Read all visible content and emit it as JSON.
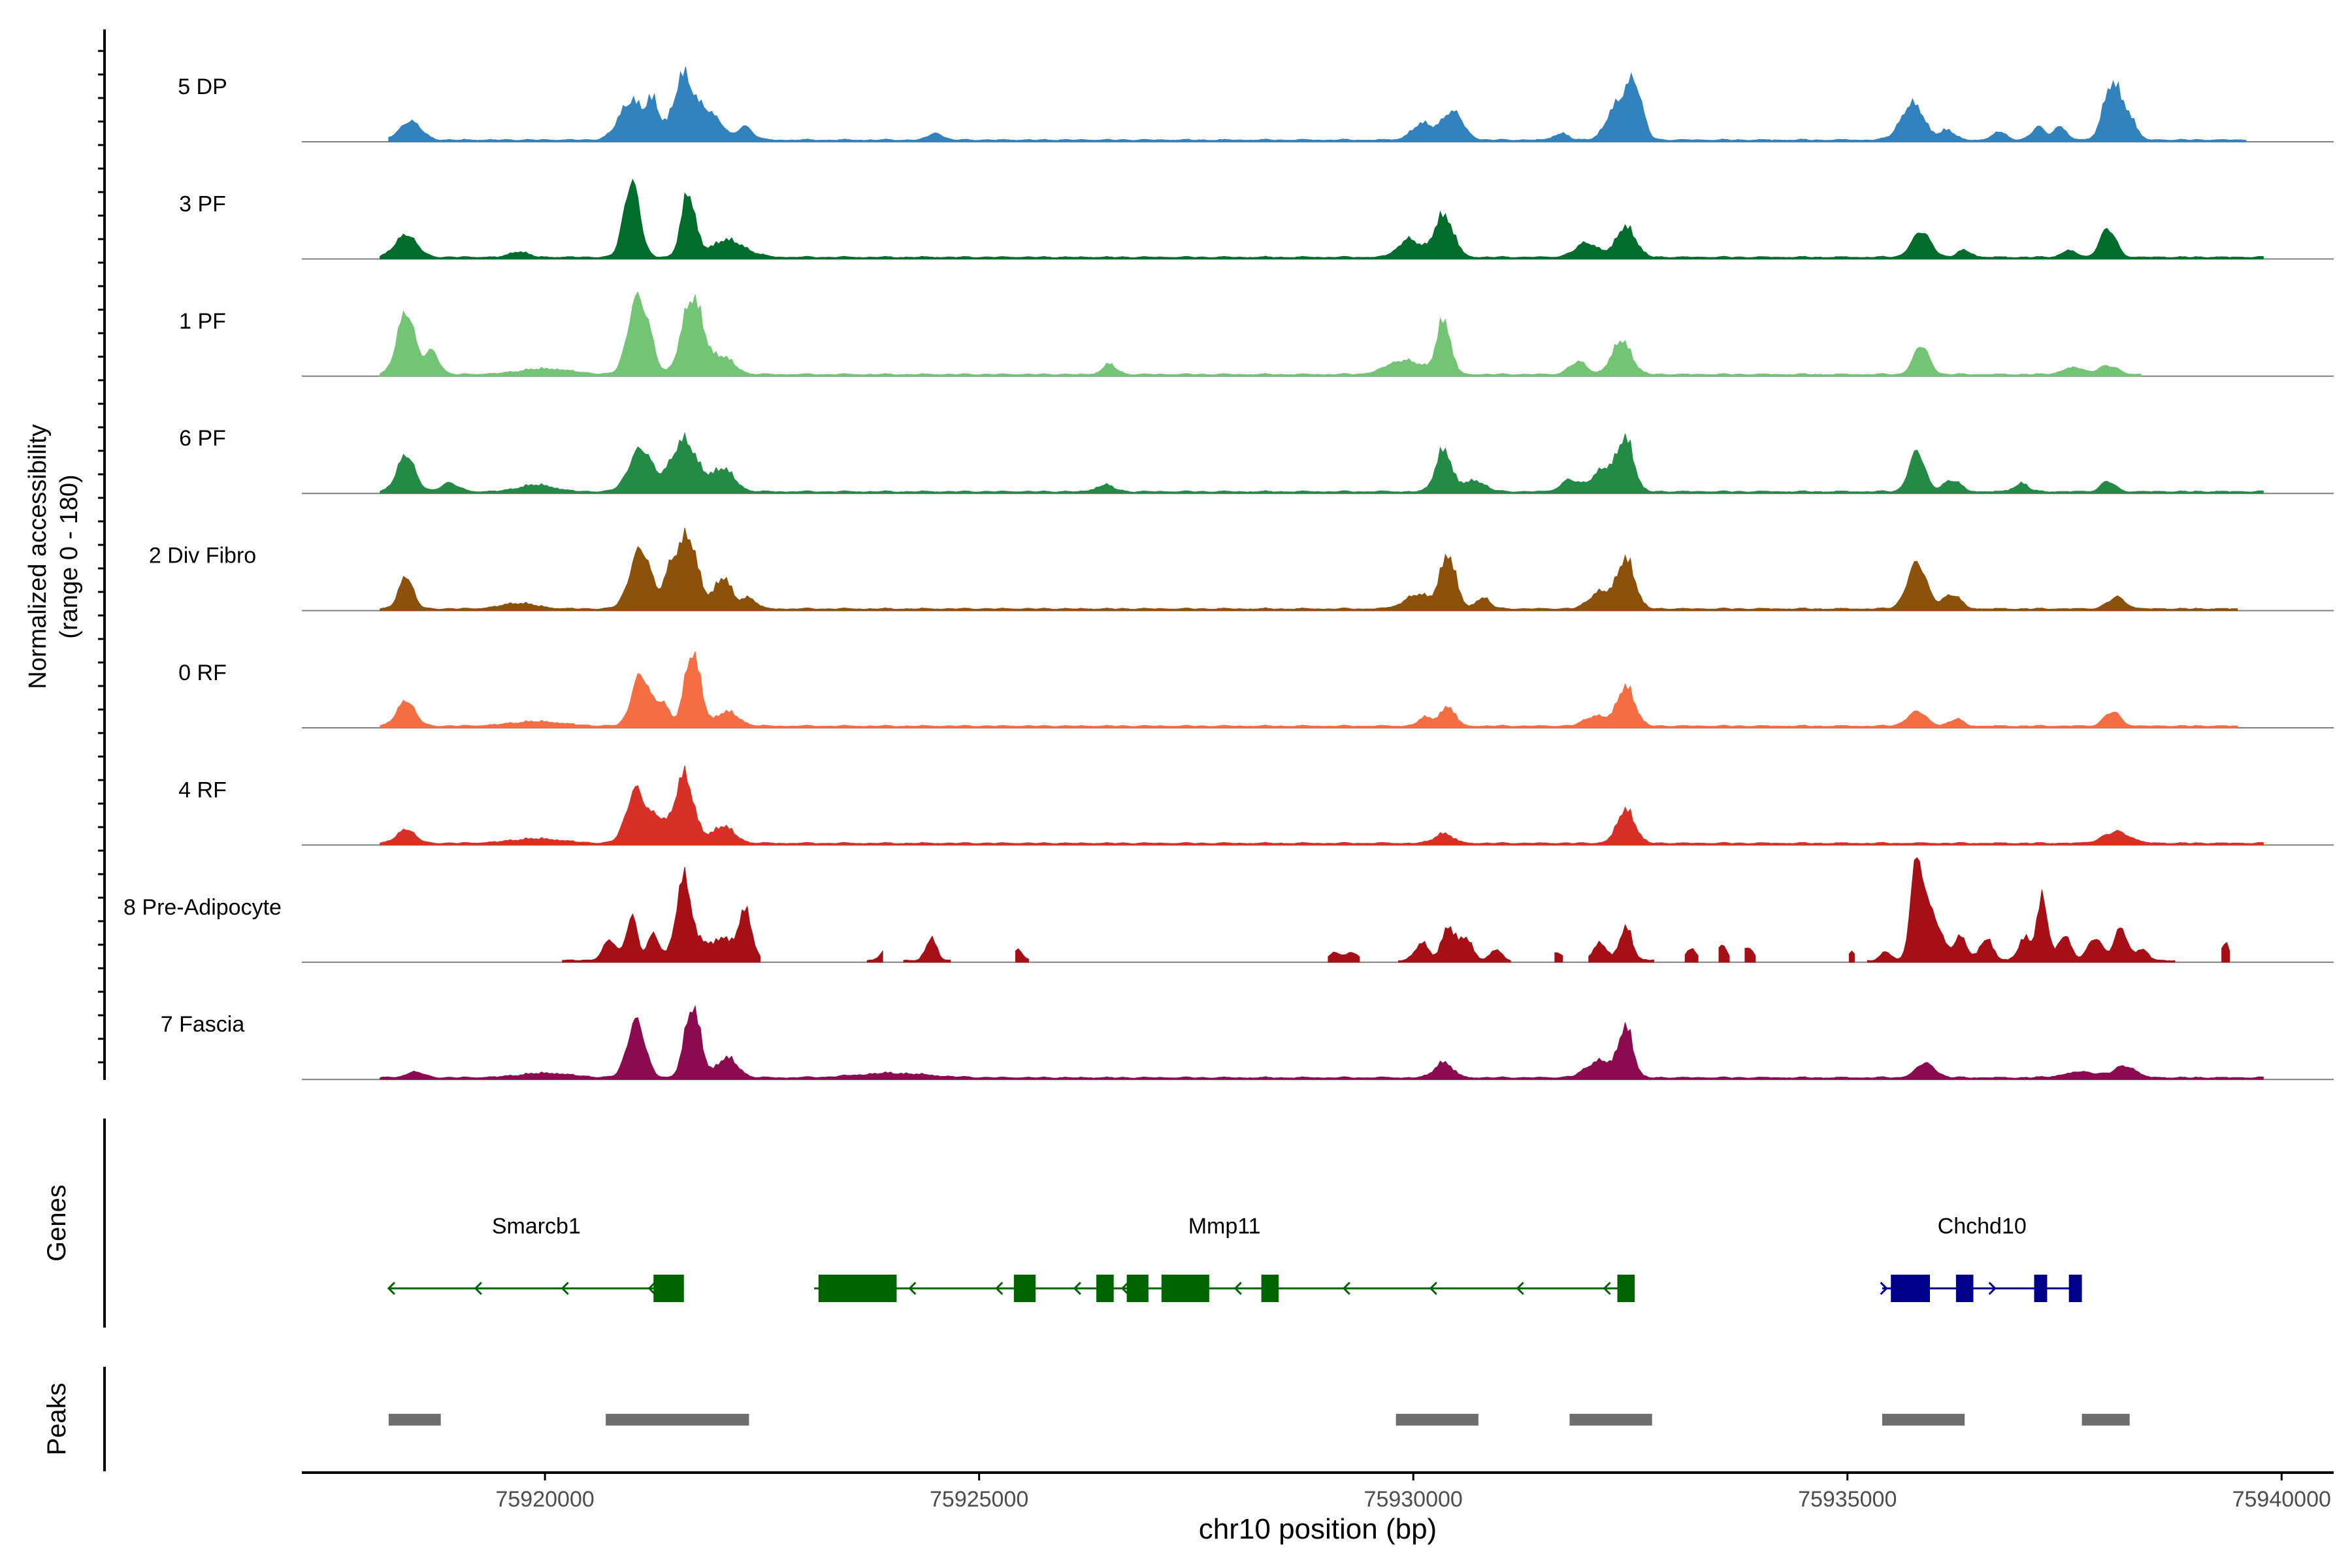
{
  "chart_data": {
    "type": "area",
    "title": "",
    "ylabel_line1": "Normalized accessibility",
    "ylabel_line2": "(range 0 - 180)",
    "xlabel": "chr10 position (bp)",
    "xlim": [
      75917200,
      75940600
    ],
    "ylim": [
      0,
      180
    ],
    "x_ticks": [
      75920000,
      75925000,
      75930000,
      75935000,
      75940000
    ],
    "x_tick_labels": [
      "75920000",
      "75925000",
      "75930000",
      "75935000",
      "75940000"
    ],
    "series": [
      {
        "name": "5 DP",
        "color": "#3182BD",
        "extent": [
          75918200,
          75939600
        ],
        "peaks": [
          [
            75918450,
            33,
            120
          ],
          [
            75921000,
            70,
            140
          ],
          [
            75921250,
            58,
            70
          ],
          [
            75921600,
            115,
            120
          ],
          [
            75921850,
            40,
            80
          ],
          [
            75922000,
            28,
            80
          ],
          [
            75922300,
            24,
            90
          ],
          [
            75924500,
            12,
            80
          ],
          [
            75930100,
            28,
            120
          ],
          [
            75930450,
            50,
            120
          ],
          [
            75931700,
            12,
            80
          ],
          [
            75932350,
            60,
            120
          ],
          [
            75932550,
            90,
            90
          ],
          [
            75935750,
            64,
            130
          ],
          [
            75936150,
            18,
            80
          ],
          [
            75936750,
            14,
            80
          ],
          [
            75937200,
            22,
            80
          ],
          [
            75937450,
            24,
            70
          ],
          [
            75938050,
            100,
            100
          ],
          [
            75938250,
            35,
            80
          ]
        ]
      },
      {
        "name": "3 PF",
        "color": "#006D2C",
        "extent": [
          75918100,
          75939800
        ],
        "peaks": [
          [
            75918400,
            40,
            120
          ],
          [
            75919700,
            10,
            100
          ],
          [
            75921000,
            133,
            90
          ],
          [
            75921650,
            110,
            80
          ],
          [
            75922100,
            30,
            200
          ],
          [
            75929950,
            32,
            120
          ],
          [
            75930350,
            75,
            110
          ],
          [
            75932000,
            25,
            130
          ],
          [
            75932450,
            54,
            110
          ],
          [
            75935850,
            44,
            110
          ],
          [
            75936350,
            12,
            80
          ],
          [
            75937550,
            12,
            80
          ],
          [
            75938000,
            50,
            90
          ]
        ]
      },
      {
        "name": "1 PF",
        "color": "#74C476",
        "extent": [
          75918100,
          75938400
        ],
        "peaks": [
          [
            75918400,
            110,
            100
          ],
          [
            75918700,
            40,
            80
          ],
          [
            75920000,
            10,
            300
          ],
          [
            75921050,
            125,
            100
          ],
          [
            75921200,
            45,
            80
          ],
          [
            75921700,
            135,
            120
          ],
          [
            75922050,
            30,
            130
          ],
          [
            75926500,
            18,
            80
          ],
          [
            75929900,
            25,
            200
          ],
          [
            75930350,
            95,
            80
          ],
          [
            75931900,
            22,
            100
          ],
          [
            75932400,
            60,
            110
          ],
          [
            75935850,
            50,
            90
          ],
          [
            75937600,
            12,
            120
          ],
          [
            75938000,
            15,
            110
          ]
        ]
      },
      {
        "name": "6 PF",
        "color": "#238B45",
        "extent": [
          75918100,
          75939800
        ],
        "peaks": [
          [
            75918400,
            65,
            100
          ],
          [
            75918900,
            15,
            100
          ],
          [
            75919900,
            12,
            200
          ],
          [
            75921100,
            75,
            130
          ],
          [
            75921600,
            90,
            150
          ],
          [
            75922050,
            40,
            130
          ],
          [
            75926450,
            12,
            100
          ],
          [
            75930350,
            75,
            90
          ],
          [
            75930700,
            20,
            120
          ],
          [
            75931800,
            20,
            100
          ],
          [
            75932200,
            40,
            140
          ],
          [
            75932450,
            88,
            90
          ],
          [
            75935800,
            70,
            90
          ],
          [
            75936200,
            20,
            100
          ],
          [
            75937000,
            15,
            80
          ],
          [
            75938000,
            18,
            80
          ]
        ]
      },
      {
        "name": "2 Div Fibro",
        "color": "#8C510A",
        "extent": [
          75918100,
          75939500
        ],
        "peaks": [
          [
            75918400,
            58,
            80
          ],
          [
            75919700,
            10,
            200
          ],
          [
            75921100,
            105,
            120
          ],
          [
            75921450,
            60,
            80
          ],
          [
            75921650,
            125,
            110
          ],
          [
            75922050,
            55,
            100
          ],
          [
            75922350,
            20,
            80
          ],
          [
            75930050,
            25,
            150
          ],
          [
            75930400,
            95,
            90
          ],
          [
            75930800,
            20,
            80
          ],
          [
            75932150,
            30,
            120
          ],
          [
            75932450,
            88,
            100
          ],
          [
            75935800,
            80,
            110
          ],
          [
            75936200,
            25,
            100
          ],
          [
            75938100,
            20,
            100
          ]
        ]
      },
      {
        "name": "0 RF",
        "color": "#F46D43",
        "extent": [
          75918100,
          75939500
        ],
        "peaks": [
          [
            75918400,
            45,
            100
          ],
          [
            75919900,
            8,
            300
          ],
          [
            75921100,
            90,
            100
          ],
          [
            75921350,
            40,
            80
          ],
          [
            75921700,
            130,
            90
          ],
          [
            75922100,
            25,
            130
          ],
          [
            75930150,
            15,
            90
          ],
          [
            75930400,
            35,
            80
          ],
          [
            75932100,
            18,
            120
          ],
          [
            75932450,
            70,
            100
          ],
          [
            75935800,
            25,
            110
          ],
          [
            75936250,
            12,
            80
          ],
          [
            75938050,
            25,
            90
          ]
        ]
      },
      {
        "name": "4 RF",
        "color": "#D73027",
        "extent": [
          75918100,
          75939800
        ],
        "peaks": [
          [
            75918400,
            25,
            100
          ],
          [
            75919900,
            8,
            300
          ],
          [
            75921050,
            95,
            110
          ],
          [
            75921300,
            40,
            80
          ],
          [
            75921600,
            120,
            110
          ],
          [
            75922050,
            30,
            130
          ],
          [
            75930350,
            18,
            100
          ],
          [
            75932450,
            60,
            100
          ],
          [
            75938100,
            20,
            150
          ]
        ]
      },
      {
        "name": "8 Pre-Adipocyte",
        "color": "#A50F15",
        "extent": [
          75920200,
          75939400
        ],
        "gaps": [
          [
            75922500,
            75923700
          ],
          [
            75923900,
            75924100
          ],
          [
            75924700,
            75925400
          ],
          [
            75925600,
            75929000
          ],
          [
            75929400,
            75929800
          ],
          [
            75931150,
            75931600
          ],
          [
            75931750,
            75932000
          ],
          [
            75932800,
            75933100
          ],
          [
            75933300,
            75933500
          ],
          [
            75933650,
            75933800
          ],
          [
            75933950,
            75935000
          ],
          [
            75935100,
            75935200
          ],
          [
            75938800,
            75939300
          ]
        ],
        "peaks": [
          [
            75920750,
            35,
            80
          ],
          [
            75921000,
            80,
            60
          ],
          [
            75921250,
            45,
            70
          ],
          [
            75921600,
            145,
            90
          ],
          [
            75921850,
            30,
            80
          ],
          [
            75922050,
            40,
            80
          ],
          [
            75922300,
            90,
            80
          ],
          [
            75923950,
            25,
            70
          ],
          [
            75924450,
            40,
            60
          ],
          [
            75925450,
            20,
            50
          ],
          [
            75929100,
            15,
            60
          ],
          [
            75929300,
            15,
            60
          ],
          [
            75930100,
            30,
            80
          ],
          [
            75930400,
            60,
            70
          ],
          [
            75930600,
            40,
            80
          ],
          [
            75930950,
            20,
            60
          ],
          [
            75931650,
            15,
            60
          ],
          [
            75932150,
            30,
            80
          ],
          [
            75932450,
            60,
            70
          ],
          [
            75932900,
            20,
            60
          ],
          [
            75933200,
            20,
            60
          ],
          [
            75933550,
            25,
            60
          ],
          [
            75933850,
            25,
            60
          ],
          [
            75935050,
            15,
            50
          ],
          [
            75935450,
            15,
            60
          ],
          [
            75935800,
            170,
            70
          ],
          [
            75935980,
            80,
            100
          ],
          [
            75936300,
            40,
            80
          ],
          [
            75936600,
            40,
            70
          ],
          [
            75937050,
            40,
            80
          ],
          [
            75937250,
            110,
            60
          ],
          [
            75937500,
            45,
            70
          ],
          [
            75937850,
            40,
            80
          ],
          [
            75938150,
            55,
            80
          ],
          [
            75938400,
            20,
            60
          ],
          [
            75939350,
            30,
            50
          ]
        ]
      },
      {
        "name": "7 Fascia",
        "color": "#8B0A50",
        "extent": [
          75918100,
          75939800
        ],
        "peaks": [
          [
            75918500,
            10,
            100
          ],
          [
            75920000,
            8,
            300
          ],
          [
            75921050,
            100,
            100
          ],
          [
            75921700,
            125,
            90
          ],
          [
            75922100,
            35,
            120
          ],
          [
            75924000,
            8,
            400
          ],
          [
            75930350,
            28,
            100
          ],
          [
            75932150,
            30,
            150
          ],
          [
            75932450,
            88,
            80
          ],
          [
            75935900,
            25,
            110
          ],
          [
            75937700,
            10,
            200
          ],
          [
            75938200,
            20,
            120
          ]
        ]
      }
    ],
    "genes_label": "Genes",
    "genes": [
      {
        "name": "Smarcb1",
        "color": "#006400",
        "line": [
          75918200,
          75921600
        ],
        "direction": "left",
        "exons": [
          [
            75921250,
            75921600
          ]
        ],
        "arrows": [
          75918200,
          75919200,
          75920200,
          75921200
        ]
      },
      {
        "name": "Mmp11",
        "color": "#006400",
        "line": [
          75923100,
          75932550
        ],
        "direction": "left",
        "exons": [
          [
            75923150,
            75924050
          ],
          [
            75925400,
            75925650
          ],
          [
            75926350,
            75926550
          ],
          [
            75926700,
            75926950
          ],
          [
            75927100,
            75927650
          ],
          [
            75928250,
            75928450
          ],
          [
            75932350,
            75932550
          ]
        ],
        "arrows": [
          75924200,
          75925200,
          75926100,
          75926650,
          75927950,
          75929200,
          75930200,
          75931200,
          75932200
        ]
      },
      {
        "name": "Chchd10",
        "color": "#00008B",
        "line": [
          75935400,
          75937700
        ],
        "direction": "right",
        "exons": [
          [
            75935500,
            75935950
          ],
          [
            75936250,
            75936450
          ],
          [
            75937150,
            75937300
          ],
          [
            75937550,
            75937700
          ]
        ],
        "arrows": [
          75935450,
          75936700
        ]
      }
    ],
    "peaks_label": "Peaks",
    "peak_regions": [
      [
        75918200,
        75918800
      ],
      [
        75920700,
        75922350
      ],
      [
        75929800,
        75930750
      ],
      [
        75931800,
        75932750
      ],
      [
        75935400,
        75936350
      ],
      [
        75937700,
        75938250
      ]
    ]
  }
}
